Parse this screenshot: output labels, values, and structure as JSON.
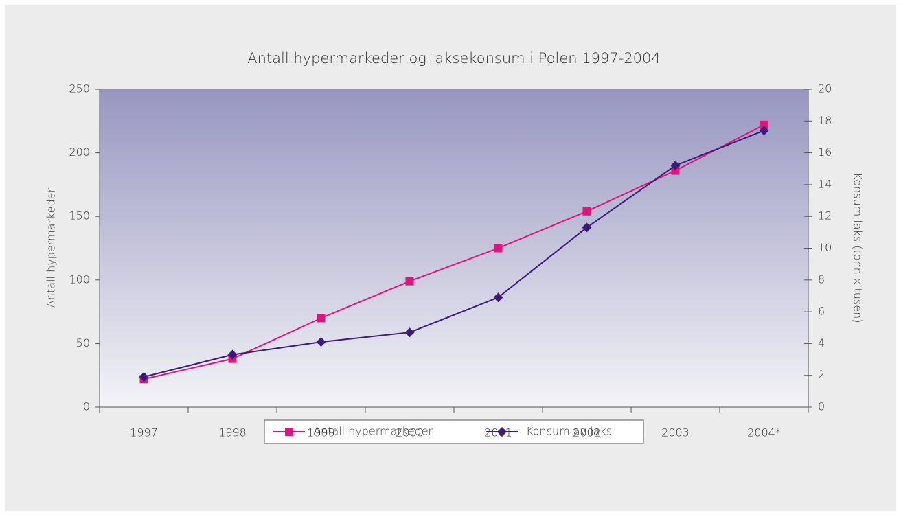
{
  "chart_data": {
    "type": "line",
    "title": "Antall hypermarkeder og laksekonsum i Polen 1997-2004",
    "ylabel": "Antall hypermarkeder",
    "y2label": "Konsum laks (tonn x tusen)",
    "categories": [
      "1997",
      "1998",
      "1999",
      "2000",
      "2001",
      "2002",
      "2003",
      "2004*"
    ],
    "series": [
      {
        "name": "Antall hypermarkeder",
        "color": "#e0147c",
        "marker": "square",
        "values": [
          22,
          38,
          70,
          99,
          125,
          154,
          186,
          222
        ]
      },
      {
        "name": "Konsum av laks",
        "color": "#3b1a7c",
        "marker": "diamond",
        "axis": "y2",
        "values": [
          1.9,
          3.3,
          4.1,
          4.7,
          6.9,
          11.3,
          15.2,
          17.4
        ]
      }
    ],
    "ylim": [
      0,
      250
    ],
    "yticks": [
      0,
      50,
      100,
      150,
      200,
      250
    ],
    "y2lim": [
      0,
      20
    ],
    "y2ticks": [
      0,
      2,
      4,
      6,
      8,
      10,
      12,
      14,
      16,
      18,
      20
    ],
    "legend": "bottom"
  }
}
